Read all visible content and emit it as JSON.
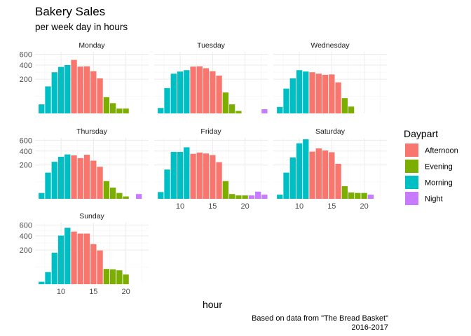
{
  "chart_data": {
    "type": "bar",
    "title": "Bakery Sales",
    "subtitle": "per week day in hours",
    "xlabel": "hour",
    "ylabel": "",
    "caption_lines": [
      "Based on data from \"The Bread Basket\"",
      "2016-2017"
    ],
    "y_scale": "sqrt",
    "ylim": [
      0,
      650
    ],
    "y_ticks": [
      200,
      400,
      600
    ],
    "y_tick_labels": [
      "200",
      "400",
      "600"
    ],
    "xlim": [
      6,
      23.5
    ],
    "x_ticks": [
      10,
      15,
      20
    ],
    "x_tick_labels": [
      "10",
      "15",
      "20"
    ],
    "legend": {
      "title": "Daypart",
      "position": "right",
      "entries": [
        {
          "name": "Afternoon",
          "color": "#F8766D"
        },
        {
          "name": "Evening",
          "color": "#7CAE00"
        },
        {
          "name": "Morning",
          "color": "#00BFC4"
        },
        {
          "name": "Night",
          "color": "#C77CFF"
        }
      ]
    },
    "grid": true,
    "facets": [
      {
        "label": "Monday",
        "bars": [
          {
            "hour": 7,
            "value": 14,
            "part": "Morning"
          },
          {
            "hour": 8,
            "value": 125,
            "part": "Morning"
          },
          {
            "hour": 9,
            "value": 290,
            "part": "Morning"
          },
          {
            "hour": 10,
            "value": 370,
            "part": "Morning"
          },
          {
            "hour": 11,
            "value": 400,
            "part": "Morning"
          },
          {
            "hour": 12,
            "value": 490,
            "part": "Afternoon"
          },
          {
            "hour": 13,
            "value": 375,
            "part": "Afternoon"
          },
          {
            "hour": 14,
            "value": 380,
            "part": "Afternoon"
          },
          {
            "hour": 15,
            "value": 305,
            "part": "Afternoon"
          },
          {
            "hour": 16,
            "value": 210,
            "part": "Afternoon"
          },
          {
            "hour": 17,
            "value": 45,
            "part": "Evening"
          },
          {
            "hour": 18,
            "value": 18,
            "part": "Evening"
          },
          {
            "hour": 19,
            "value": 4,
            "part": "Evening"
          },
          {
            "hour": 20,
            "value": 4,
            "part": "Evening"
          }
        ]
      },
      {
        "label": "Tuesday",
        "bars": [
          {
            "hour": 7,
            "value": 5,
            "part": "Morning"
          },
          {
            "hour": 8,
            "value": 110,
            "part": "Morning"
          },
          {
            "hour": 9,
            "value": 270,
            "part": "Morning"
          },
          {
            "hour": 10,
            "value": 300,
            "part": "Morning"
          },
          {
            "hour": 11,
            "value": 320,
            "part": "Morning"
          },
          {
            "hour": 12,
            "value": 375,
            "part": "Afternoon"
          },
          {
            "hour": 13,
            "value": 380,
            "part": "Afternoon"
          },
          {
            "hour": 14,
            "value": 350,
            "part": "Afternoon"
          },
          {
            "hour": 15,
            "value": 305,
            "part": "Afternoon"
          },
          {
            "hour": 16,
            "value": 245,
            "part": "Afternoon"
          },
          {
            "hour": 17,
            "value": 75,
            "part": "Evening"
          },
          {
            "hour": 18,
            "value": 14,
            "part": "Evening"
          },
          {
            "hour": 19,
            "value": 1,
            "part": "Evening"
          },
          {
            "hour": 23,
            "value": 3,
            "part": "Night"
          }
        ]
      },
      {
        "label": "Wednesday",
        "bars": [
          {
            "hour": 7,
            "value": 7,
            "part": "Morning"
          },
          {
            "hour": 8,
            "value": 105,
            "part": "Morning"
          },
          {
            "hour": 9,
            "value": 210,
            "part": "Morning"
          },
          {
            "hour": 10,
            "value": 320,
            "part": "Morning"
          },
          {
            "hour": 11,
            "value": 300,
            "part": "Morning"
          },
          {
            "hour": 12,
            "value": 290,
            "part": "Afternoon"
          },
          {
            "hour": 13,
            "value": 270,
            "part": "Afternoon"
          },
          {
            "hour": 14,
            "value": 255,
            "part": "Afternoon"
          },
          {
            "hour": 15,
            "value": 260,
            "part": "Afternoon"
          },
          {
            "hour": 16,
            "value": 165,
            "part": "Afternoon"
          },
          {
            "hour": 17,
            "value": 40,
            "part": "Evening"
          },
          {
            "hour": 18,
            "value": 8,
            "part": "Evening"
          }
        ]
      },
      {
        "label": "Thursday",
        "bars": [
          {
            "hour": 7,
            "value": 6,
            "part": "Morning"
          },
          {
            "hour": 8,
            "value": 120,
            "part": "Morning"
          },
          {
            "hour": 9,
            "value": 240,
            "part": "Morning"
          },
          {
            "hour": 10,
            "value": 310,
            "part": "Morning"
          },
          {
            "hour": 11,
            "value": 345,
            "part": "Morning"
          },
          {
            "hour": 12,
            "value": 330,
            "part": "Afternoon"
          },
          {
            "hour": 13,
            "value": 290,
            "part": "Afternoon"
          },
          {
            "hour": 14,
            "value": 340,
            "part": "Afternoon"
          },
          {
            "hour": 15,
            "value": 255,
            "part": "Afternoon"
          },
          {
            "hour": 16,
            "value": 180,
            "part": "Afternoon"
          },
          {
            "hour": 17,
            "value": 55,
            "part": "Evening"
          },
          {
            "hour": 18,
            "value": 22,
            "part": "Evening"
          },
          {
            "hour": 19,
            "value": 6,
            "part": "Evening"
          },
          {
            "hour": 20,
            "value": 1,
            "part": "Evening"
          },
          {
            "hour": 22,
            "value": 4,
            "part": "Night"
          }
        ]
      },
      {
        "label": "Friday",
        "bars": [
          {
            "hour": 7,
            "value": 8,
            "part": "Morning"
          },
          {
            "hour": 8,
            "value": 150,
            "part": "Morning"
          },
          {
            "hour": 9,
            "value": 385,
            "part": "Morning"
          },
          {
            "hour": 10,
            "value": 385,
            "part": "Morning"
          },
          {
            "hour": 11,
            "value": 465,
            "part": "Morning"
          },
          {
            "hour": 12,
            "value": 355,
            "part": "Afternoon"
          },
          {
            "hour": 13,
            "value": 375,
            "part": "Afternoon"
          },
          {
            "hour": 14,
            "value": 360,
            "part": "Afternoon"
          },
          {
            "hour": 15,
            "value": 335,
            "part": "Afternoon"
          },
          {
            "hour": 16,
            "value": 235,
            "part": "Afternoon"
          },
          {
            "hour": 17,
            "value": 55,
            "part": "Evening"
          },
          {
            "hour": 18,
            "value": 4,
            "part": "Evening"
          },
          {
            "hour": 19,
            "value": 2,
            "part": "Evening"
          },
          {
            "hour": 20,
            "value": 2,
            "part": "Evening"
          },
          {
            "hour": 21,
            "value": 2,
            "part": "Night"
          },
          {
            "hour": 22,
            "value": 9,
            "part": "Night"
          },
          {
            "hour": 23,
            "value": 3,
            "part": "Night"
          }
        ]
      },
      {
        "label": "Saturday",
        "bars": [
          {
            "hour": 7,
            "value": 3,
            "part": "Morning"
          },
          {
            "hour": 8,
            "value": 120,
            "part": "Morning"
          },
          {
            "hour": 9,
            "value": 300,
            "part": "Morning"
          },
          {
            "hour": 10,
            "value": 540,
            "part": "Morning"
          },
          {
            "hour": 11,
            "value": 620,
            "part": "Morning"
          },
          {
            "hour": 12,
            "value": 390,
            "part": "Afternoon"
          },
          {
            "hour": 13,
            "value": 445,
            "part": "Afternoon"
          },
          {
            "hour": 14,
            "value": 410,
            "part": "Afternoon"
          },
          {
            "hour": 15,
            "value": 380,
            "part": "Afternoon"
          },
          {
            "hour": 16,
            "value": 215,
            "part": "Afternoon"
          },
          {
            "hour": 17,
            "value": 28,
            "part": "Evening"
          },
          {
            "hour": 18,
            "value": 7,
            "part": "Evening"
          },
          {
            "hour": 19,
            "value": 6,
            "part": "Evening"
          },
          {
            "hour": 20,
            "value": 6,
            "part": "Evening"
          },
          {
            "hour": 21,
            "value": 3,
            "part": "Night"
          }
        ]
      },
      {
        "label": "Sunday",
        "bars": [
          {
            "hour": 7,
            "value": 1,
            "part": "Morning"
          },
          {
            "hour": 8,
            "value": 25,
            "part": "Morning"
          },
          {
            "hour": 9,
            "value": 170,
            "part": "Morning"
          },
          {
            "hour": 10,
            "value": 405,
            "part": "Morning"
          },
          {
            "hour": 11,
            "value": 545,
            "part": "Morning"
          },
          {
            "hour": 12,
            "value": 475,
            "part": "Afternoon"
          },
          {
            "hour": 13,
            "value": 440,
            "part": "Afternoon"
          },
          {
            "hour": 14,
            "value": 440,
            "part": "Afternoon"
          },
          {
            "hour": 15,
            "value": 275,
            "part": "Afternoon"
          },
          {
            "hour": 16,
            "value": 195,
            "part": "Afternoon"
          },
          {
            "hour": 17,
            "value": 40,
            "part": "Evening"
          },
          {
            "hour": 18,
            "value": 38,
            "part": "Evening"
          },
          {
            "hour": 19,
            "value": 33,
            "part": "Evening"
          },
          {
            "hour": 20,
            "value": 16,
            "part": "Evening"
          }
        ]
      }
    ]
  }
}
